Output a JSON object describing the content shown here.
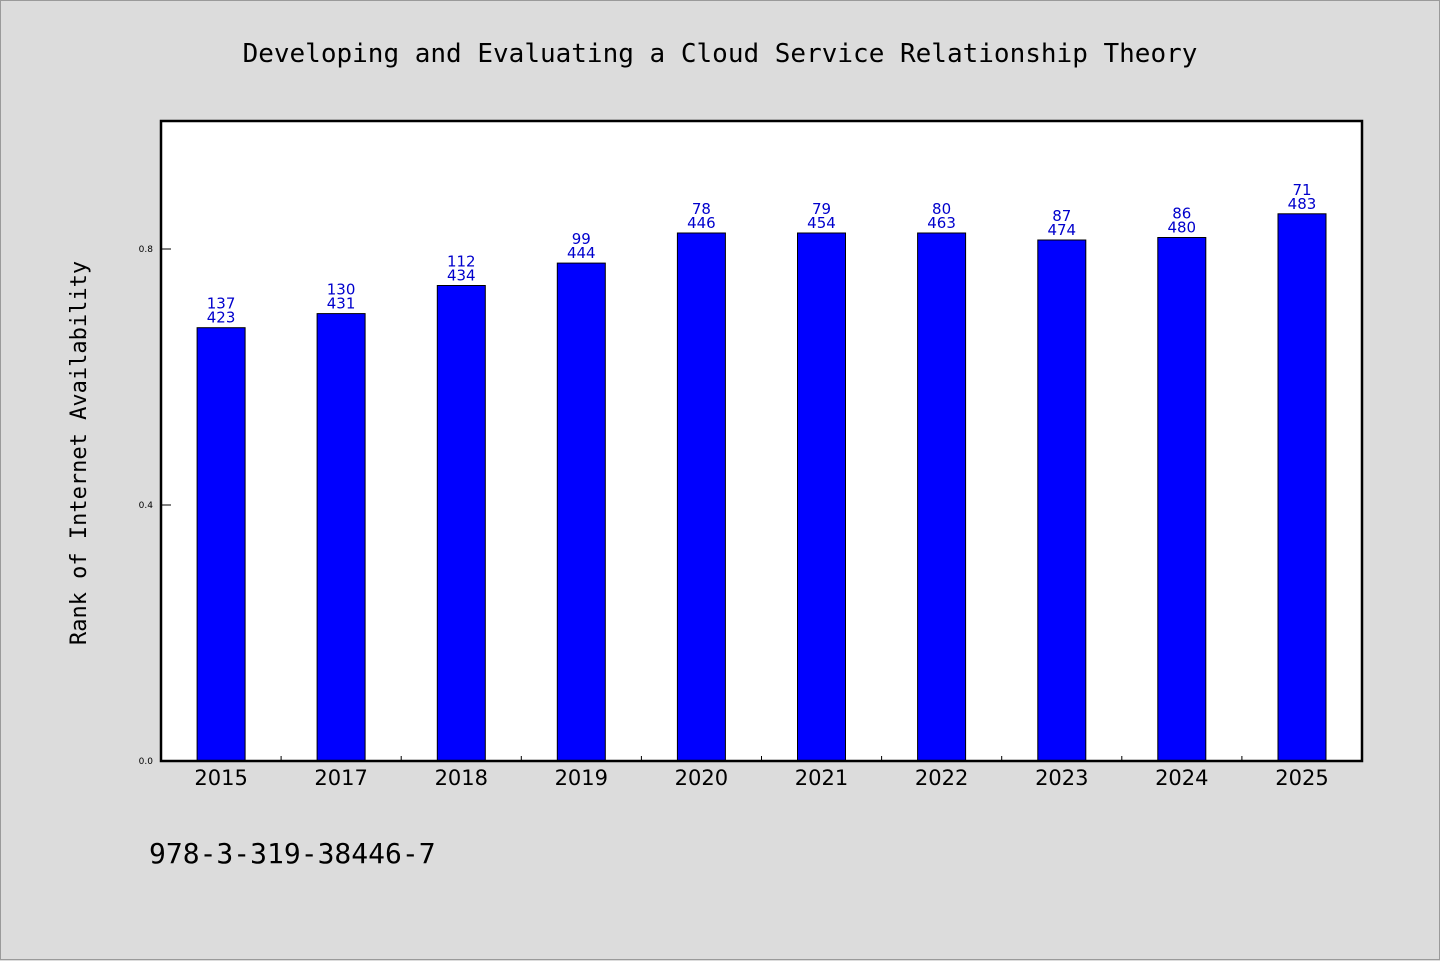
{
  "chart_data": {
    "type": "bar",
    "title": "Developing and Evaluating a Cloud Service Relationship Theory",
    "xlabel": "",
    "ylabel": "Rank of Internet Availability",
    "categories": [
      "2015",
      "2017",
      "2018",
      "2019",
      "2020",
      "2021",
      "2022",
      "2023",
      "2024",
      "2025"
    ],
    "values": [
      0.677,
      0.699,
      0.743,
      0.778,
      0.825,
      0.825,
      0.825,
      0.814,
      0.818,
      0.855
    ],
    "labels_top": [
      "137",
      "130",
      "112",
      "99",
      "78",
      "79",
      "80",
      "87",
      "86",
      "71"
    ],
    "labels_bottom": [
      "423",
      "431",
      "434",
      "444",
      "446",
      "454",
      "463",
      "474",
      "480",
      "483"
    ],
    "ylim": [
      0,
      1.0
    ],
    "yticks": [
      0.0,
      0.4,
      0.8
    ],
    "ytick_labels": [
      "0.0",
      "0.4",
      "0.8"
    ],
    "grid": false,
    "bar_color": "#0000ff",
    "label_color": "#0000cc"
  },
  "footer": {
    "isbn": "978-3-319-38446-7"
  }
}
